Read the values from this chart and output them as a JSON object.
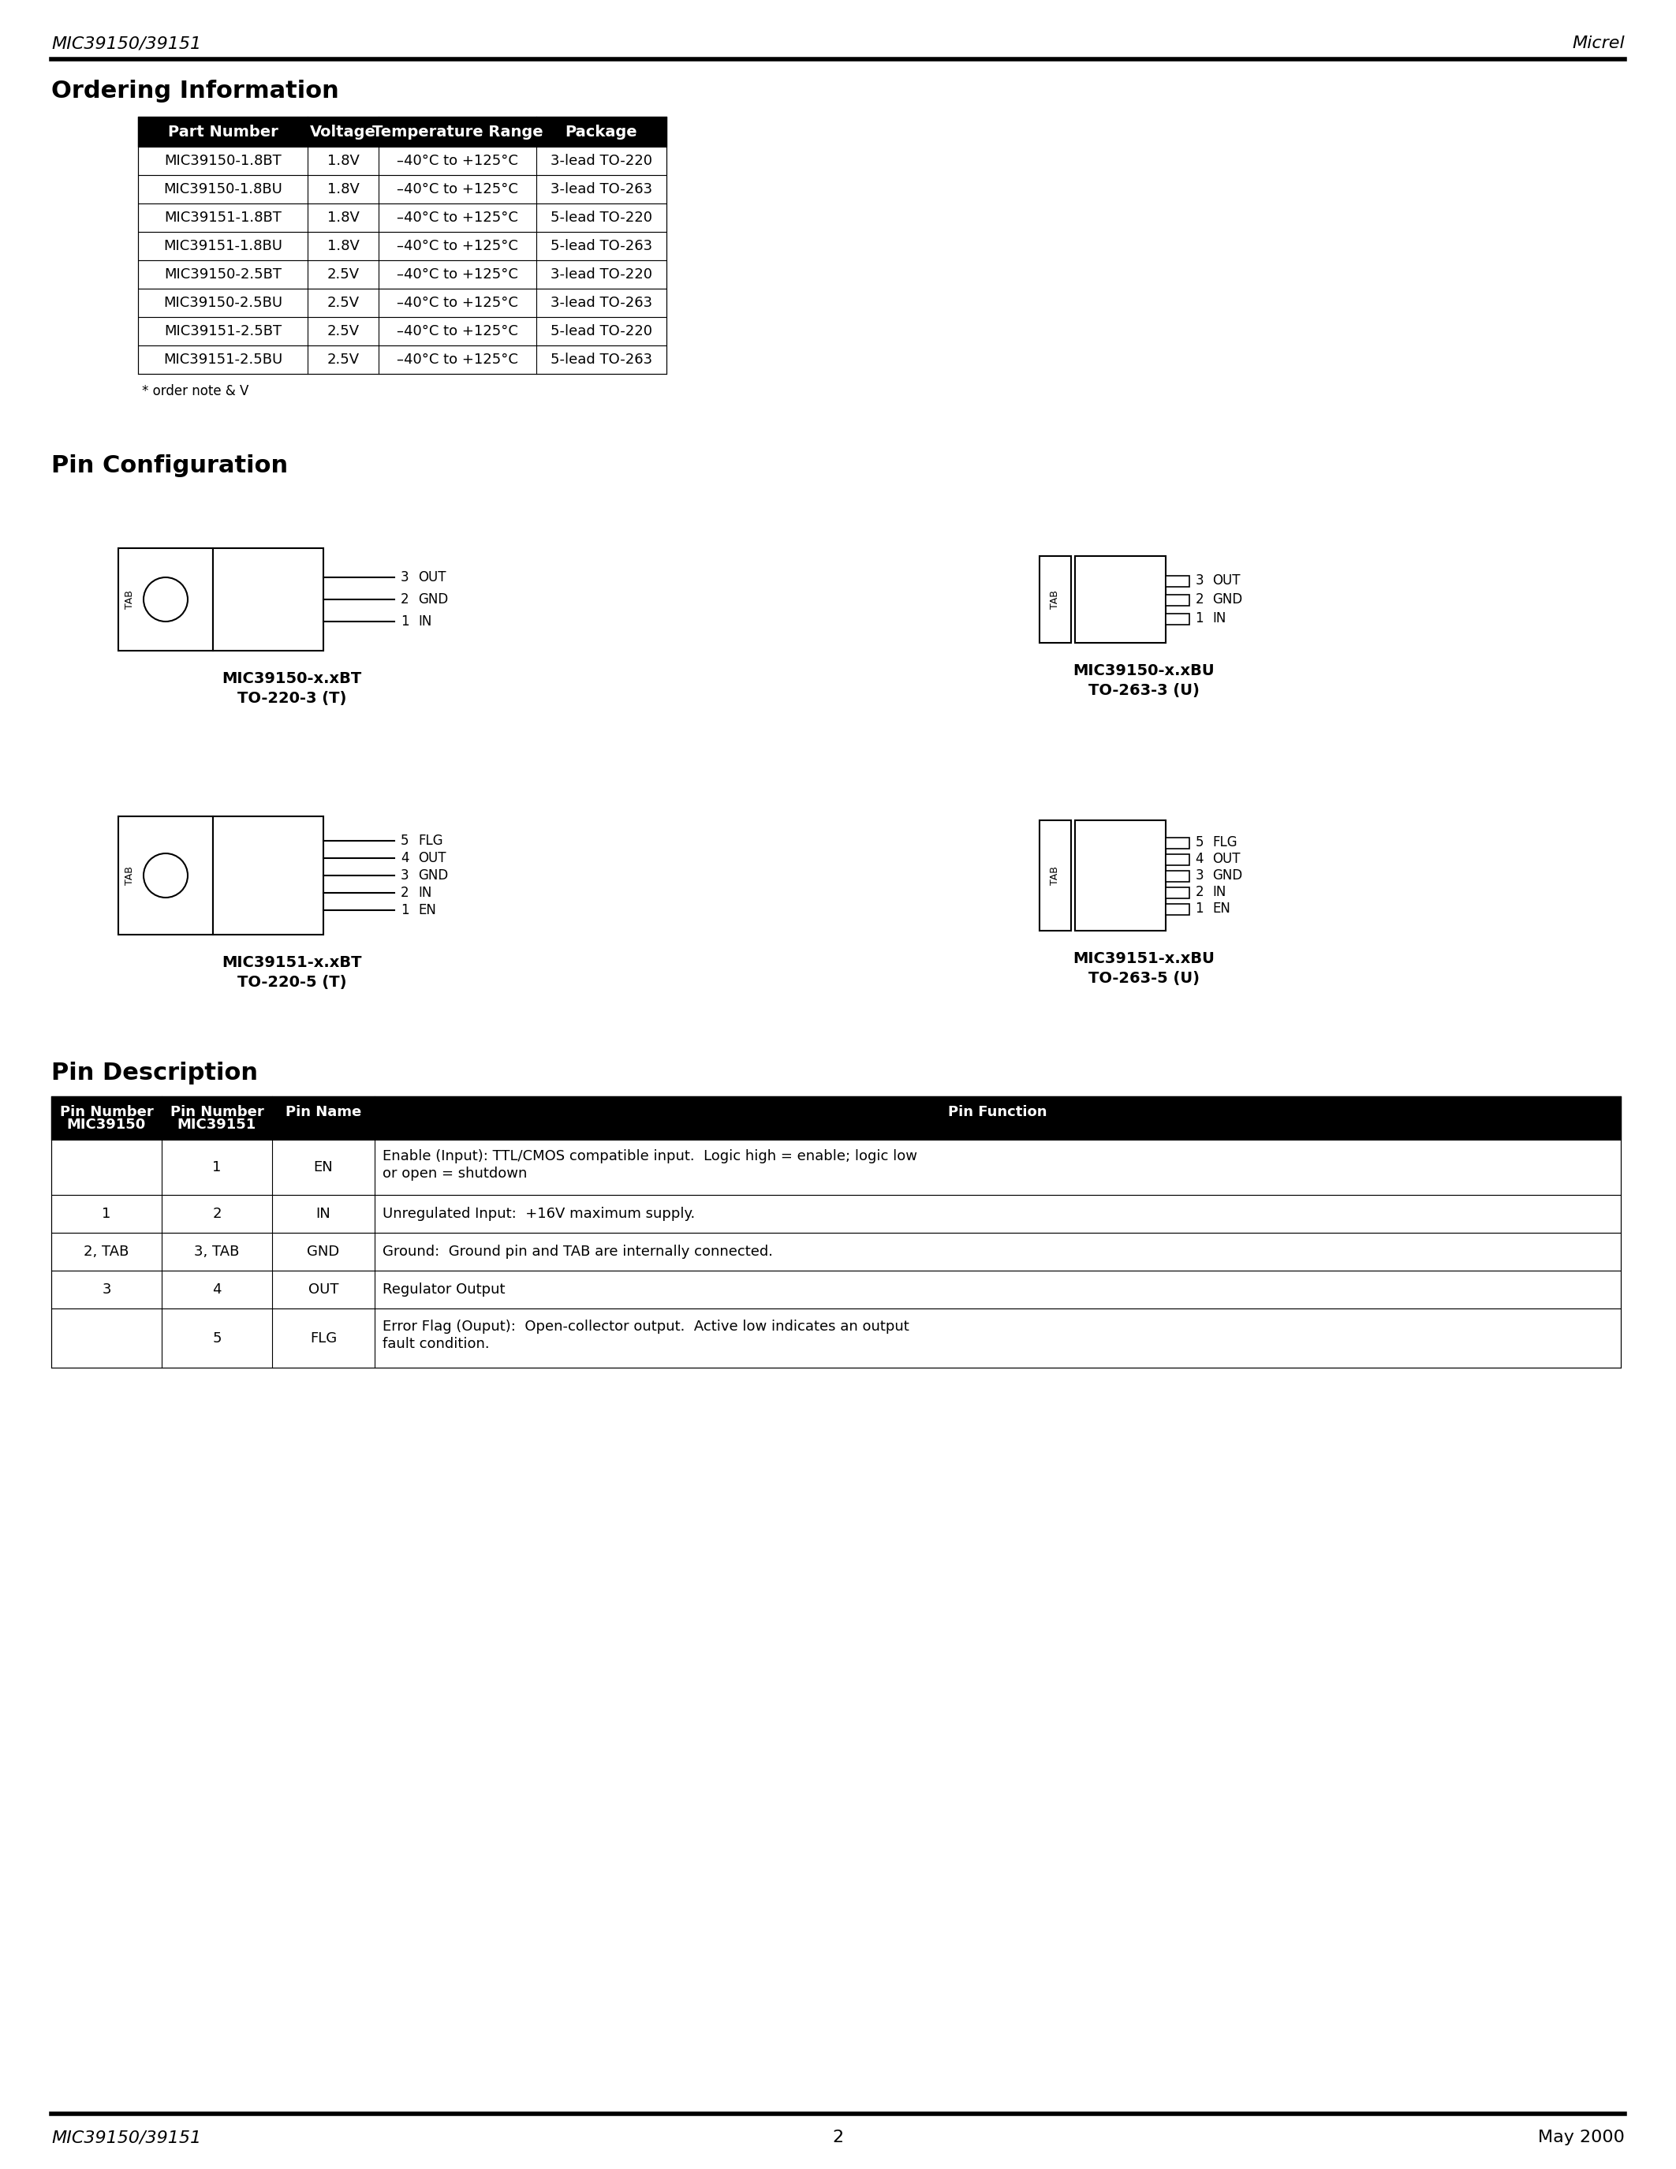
{
  "page_title_left": "MIC39150/39151",
  "page_title_right": "Micrel",
  "section1_title": "Ordering Information",
  "ordering_table": {
    "headers": [
      "Part Number",
      "Voltage",
      "Temperature Range",
      "Package"
    ],
    "rows": [
      [
        "MIC39150-1.8BT",
        "1.8V",
        "–40°C to +125°C",
        "3-lead TO-220"
      ],
      [
        "MIC39150-1.8BU",
        "1.8V",
        "–40°C to +125°C",
        "3-lead TO-263"
      ],
      [
        "MIC39151-1.8BT",
        "1.8V",
        "–40°C to +125°C",
        "5-lead TO-220"
      ],
      [
        "MIC39151-1.8BU",
        "1.8V",
        "–40°C to +125°C",
        "5-lead TO-263"
      ],
      [
        "MIC39150-2.5BT",
        "2.5V",
        "–40°C to +125°C",
        "3-lead TO-220"
      ],
      [
        "MIC39150-2.5BU",
        "2.5V",
        "–40°C to +125°C",
        "3-lead TO-263"
      ],
      [
        "MIC39151-2.5BT",
        "2.5V",
        "–40°C to +125°C",
        "5-lead TO-220"
      ],
      [
        "MIC39151-2.5BU",
        "2.5V",
        "–40°C to +125°C",
        "5-lead TO-263"
      ]
    ]
  },
  "order_note": "* order note & V",
  "section2_title": "Pin Configuration",
  "section3_title": "Pin Description",
  "pin_desc_table": {
    "headers": [
      "Pin Number\nMIC39150",
      "Pin Number\nMIC39151",
      "Pin Name",
      "Pin Function"
    ],
    "rows": [
      [
        "",
        "1",
        "EN",
        "Enable (Input): TTL/CMOS compatible input.  Logic high = enable; logic low\nor open = shutdown"
      ],
      [
        "1",
        "2",
        "IN",
        "Unregulated Input:  +16V maximum supply."
      ],
      [
        "2, TAB",
        "3, TAB",
        "GND",
        "Ground:  Ground pin and TAB are internally connected."
      ],
      [
        "3",
        "4",
        "OUT",
        "Regulator Output"
      ],
      [
        "",
        "5",
        "FLG",
        "Error Flag (Ouput):  Open-collector output.  Active low indicates an output\nfault condition."
      ]
    ]
  },
  "footer_left": "MIC39150/39151",
  "footer_center": "2",
  "footer_right": "May 2000",
  "bg_color": "#ffffff",
  "text_color": "#000000"
}
